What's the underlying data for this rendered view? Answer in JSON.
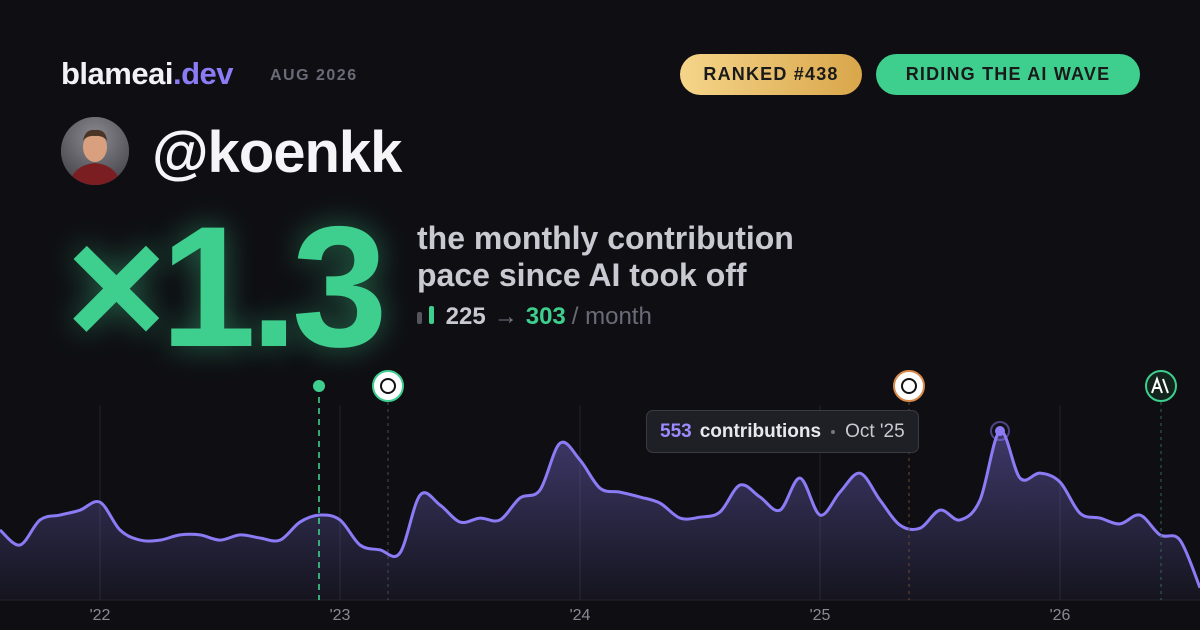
{
  "header": {
    "brand": "blameai",
    "brand_suffix": ".dev",
    "date": "AUG 2026",
    "badges": [
      "RANKED #438",
      "RIDING THE AI WAVE"
    ]
  },
  "profile": {
    "handle": "@koenkk"
  },
  "stat": {
    "multiplier": "×1.3",
    "description": [
      "the monthly contribution",
      "pace since AI took off"
    ],
    "before": "225",
    "arrow": "→",
    "after": "303",
    "unit": "/ month"
  },
  "tooltip": {
    "label": "contributions",
    "date": "Oct '25"
  },
  "chart_data": {
    "type": "area",
    "categories": [
      null,
      null,
      null,
      null,
      null,
      "'22",
      null,
      null,
      null,
      null,
      null,
      null,
      null,
      null,
      null,
      null,
      null,
      "'23",
      null,
      null,
      null,
      null,
      null,
      null,
      null,
      null,
      null,
      null,
      null,
      "'24",
      null,
      null,
      null,
      null,
      null,
      null,
      null,
      null,
      null,
      null,
      null,
      "'25",
      null,
      null,
      null,
      null,
      null,
      null,
      null,
      null,
      null,
      null,
      null,
      "'26",
      null,
      null,
      null,
      null,
      null,
      null,
      null
    ],
    "series": [
      {
        "name": "contributions",
        "color": "#8b7cf6",
        "values": [
          229,
          180,
          262,
          278,
          294,
          320,
          229,
          196,
          196,
          213,
          213,
          196,
          213,
          203,
          196,
          255,
          278,
          262,
          180,
          164,
          154,
          343,
          311,
          255,
          268,
          262,
          334,
          360,
          513,
          458,
          366,
          353,
          337,
          317,
          268,
          271,
          288,
          376,
          337,
          294,
          399,
          278,
          353,
          415,
          327,
          245,
          235,
          294,
          262,
          327,
          553,
          399,
          415,
          386,
          284,
          268,
          249,
          278,
          213,
          196,
          40
        ]
      }
    ]
  }
}
